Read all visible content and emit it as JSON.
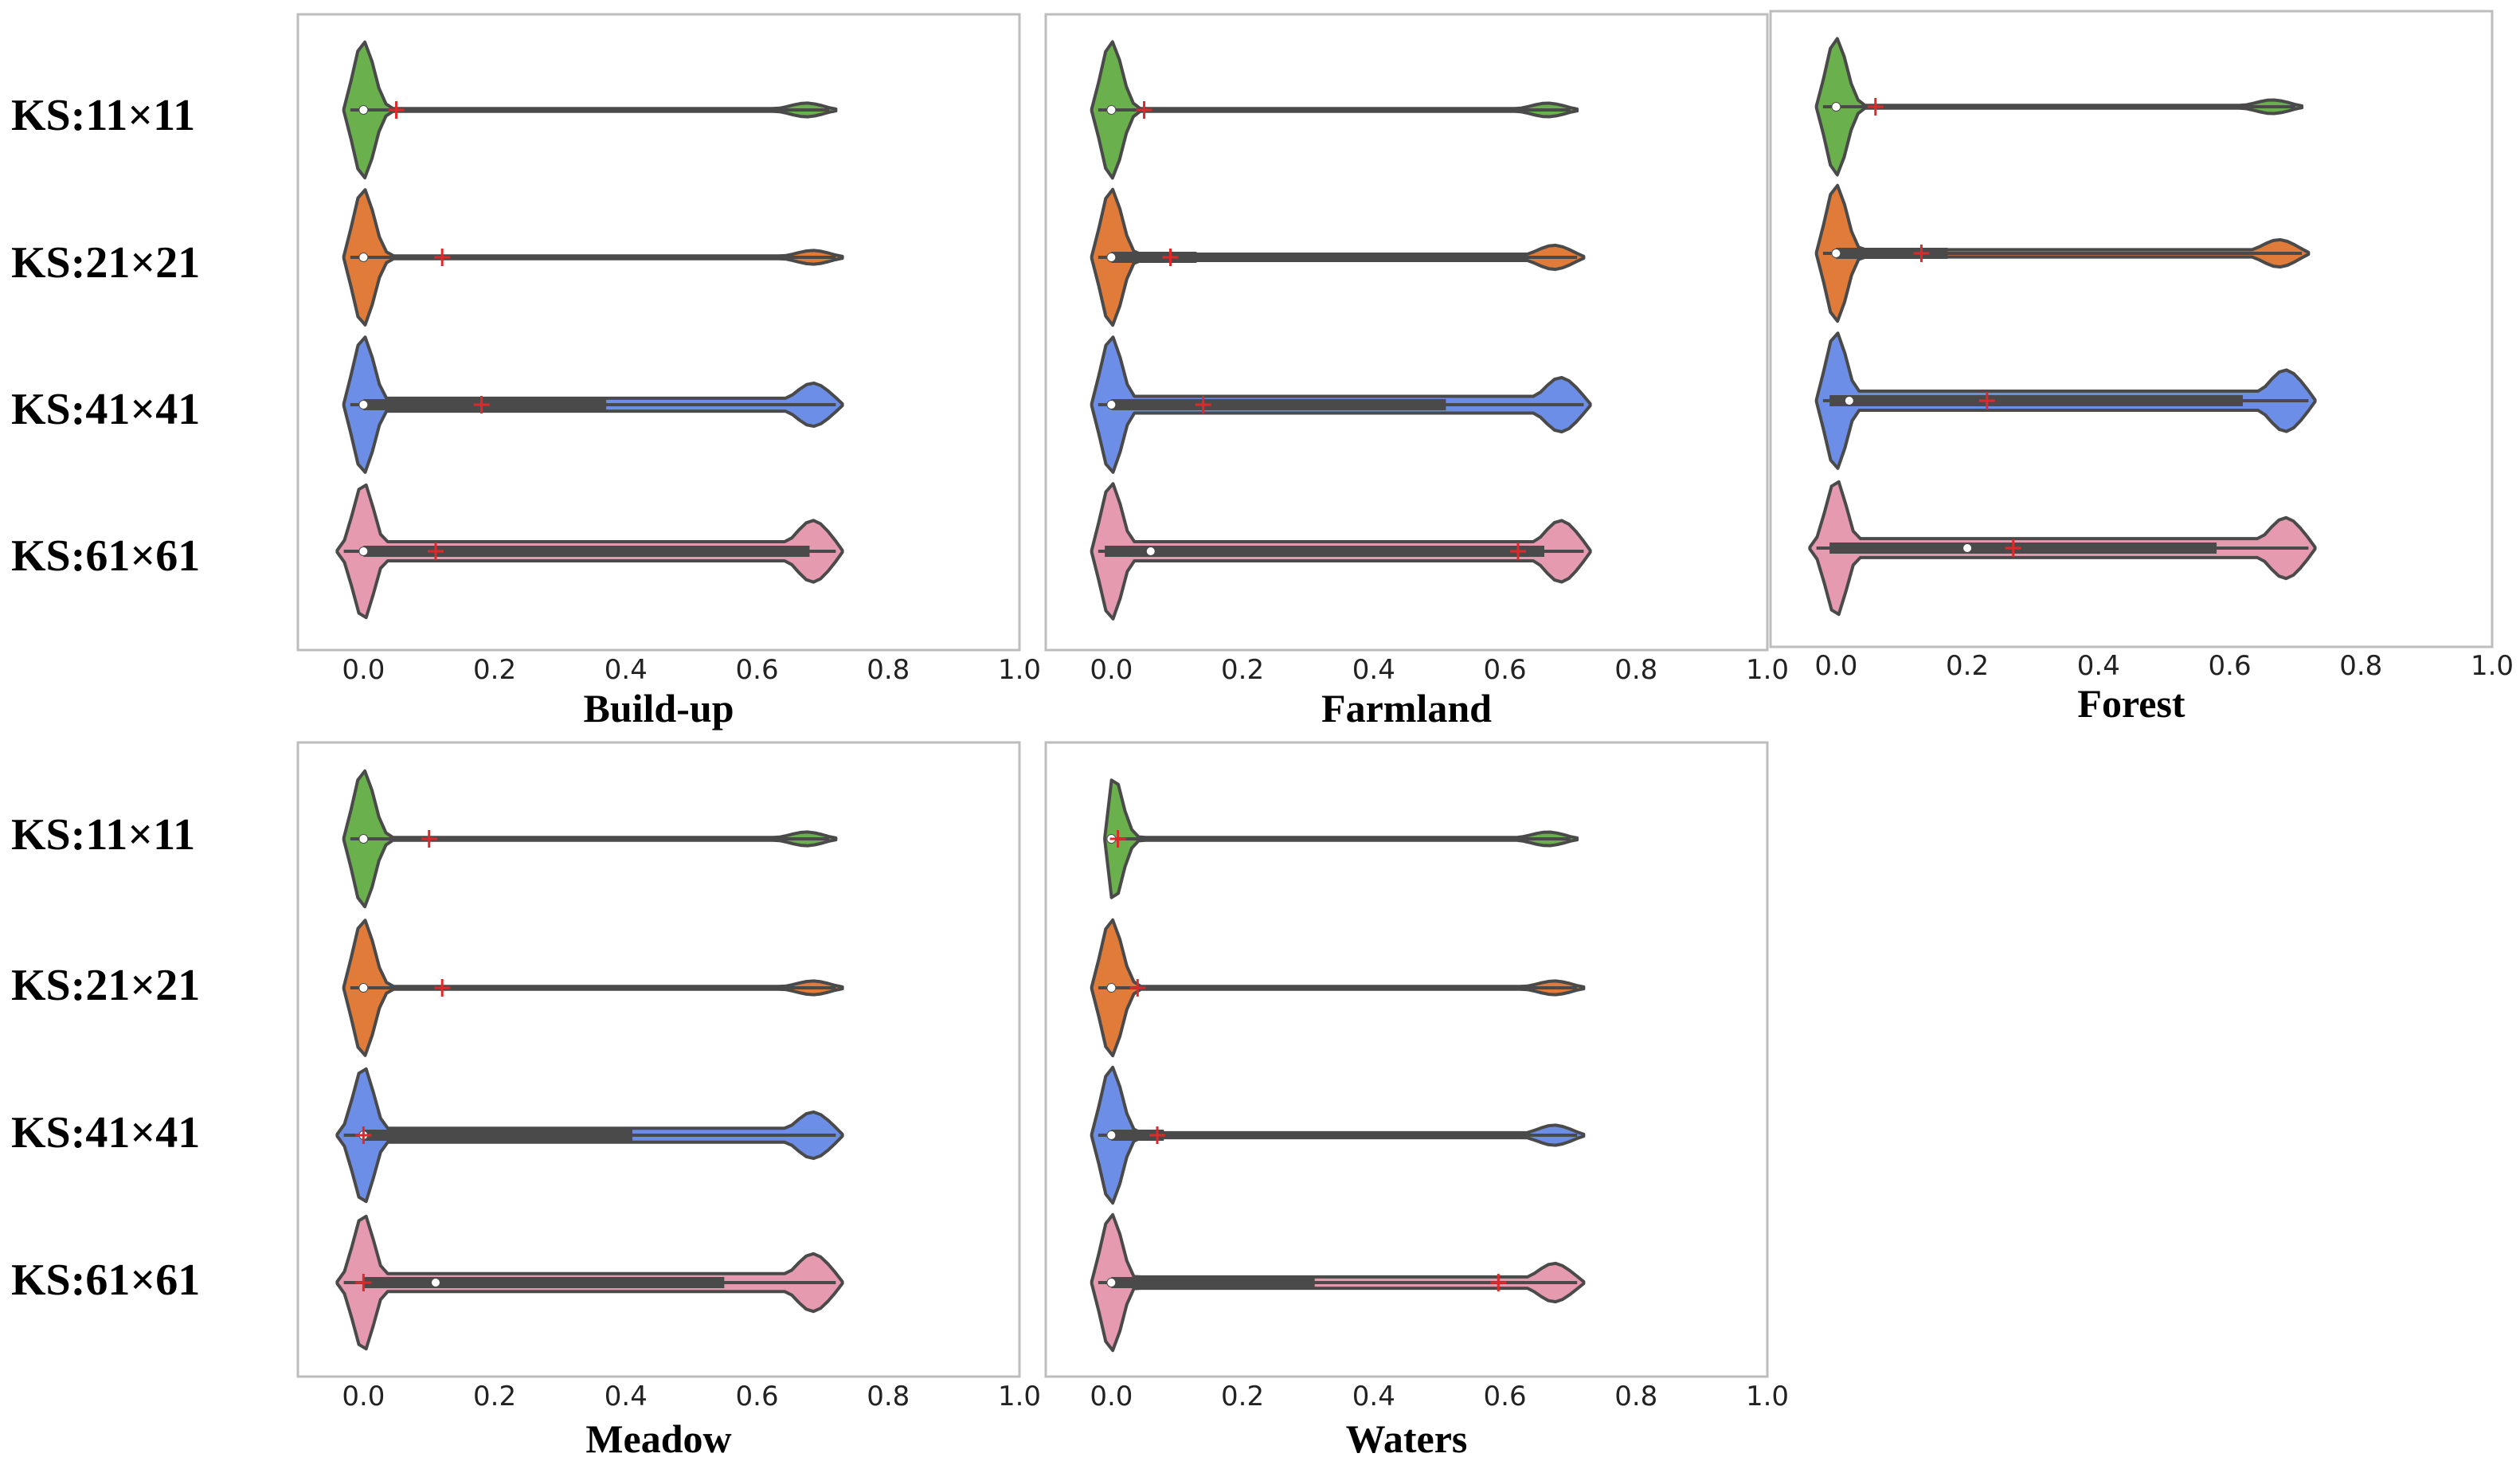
{
  "figure": {
    "row_labels": [
      "KS:11×11",
      "KS:21×21",
      "KS:41×41",
      "KS:61×61"
    ],
    "colors": {
      "KS:11×11": "#6ab04c",
      "KS:21×21": "#e07b39",
      "KS:41×41": "#6c8ee6",
      "KS:61×61": "#e59ab0",
      "outline": "#4a4a4a",
      "box": "#4a4a4a",
      "median": "#ffffff",
      "mean": "#e0282a"
    }
  },
  "chart_data": [
    {
      "type": "violin",
      "title": "Build-up",
      "xlim": [
        -0.1,
        1.0
      ],
      "ticks": [
        "0.0",
        "0.2",
        "0.4",
        "0.6",
        "0.8",
        "1.0"
      ],
      "tick_values": [
        0.0,
        0.2,
        0.4,
        0.6,
        0.8,
        1.0
      ],
      "series": [
        {
          "name": "KS:11×11",
          "min": -0.03,
          "max": 0.72,
          "q1": 0.0,
          "q3": 0.0,
          "median": 0.0,
          "mean": 0.05
        },
        {
          "name": "KS:21×21",
          "min": -0.03,
          "max": 0.73,
          "q1": 0.0,
          "q3": 0.0,
          "median": 0.0,
          "mean": 0.12
        },
        {
          "name": "KS:41×41",
          "min": -0.03,
          "max": 0.73,
          "q1": 0.0,
          "q3": 0.37,
          "median": 0.0,
          "mean": 0.18
        },
        {
          "name": "KS:61×61",
          "min": -0.04,
          "max": 0.73,
          "q1": 0.0,
          "q3": 0.68,
          "median": 0.0,
          "mean": 0.11
        }
      ]
    },
    {
      "type": "violin",
      "title": "Farmland",
      "xlim": [
        -0.1,
        1.0
      ],
      "ticks": [
        "0.0",
        "0.2",
        "0.4",
        "0.6",
        "0.8",
        "1.0"
      ],
      "tick_values": [
        0.0,
        0.2,
        0.4,
        0.6,
        0.8,
        1.0
      ],
      "series": [
        {
          "name": "KS:11×11",
          "min": -0.03,
          "max": 0.71,
          "q1": 0.0,
          "q3": 0.0,
          "median": 0.0,
          "mean": 0.05
        },
        {
          "name": "KS:21×21",
          "min": -0.03,
          "max": 0.72,
          "q1": 0.0,
          "q3": 0.13,
          "median": 0.0,
          "mean": 0.09
        },
        {
          "name": "KS:41×41",
          "min": -0.03,
          "max": 0.73,
          "q1": 0.0,
          "q3": 0.51,
          "median": 0.0,
          "mean": 0.14
        },
        {
          "name": "KS:61×61",
          "min": -0.03,
          "max": 0.73,
          "q1": -0.01,
          "q3": 0.66,
          "median": 0.06,
          "mean": 0.62
        }
      ]
    },
    {
      "type": "violin",
      "title": "Forest",
      "xlim": [
        -0.1,
        1.0
      ],
      "ticks": [
        "0.0",
        "0.2",
        "0.4",
        "0.6",
        "0.8",
        "1.0"
      ],
      "tick_values": [
        0.0,
        0.2,
        0.4,
        0.6,
        0.8,
        1.0
      ],
      "series": [
        {
          "name": "KS:11×11",
          "min": -0.03,
          "max": 0.71,
          "q1": 0.0,
          "q3": 0.0,
          "median": 0.0,
          "mean": 0.06
        },
        {
          "name": "KS:21×21",
          "min": -0.03,
          "max": 0.72,
          "q1": 0.0,
          "q3": 0.17,
          "median": 0.0,
          "mean": 0.13
        },
        {
          "name": "KS:41×41",
          "min": -0.03,
          "max": 0.73,
          "q1": -0.01,
          "q3": 0.62,
          "median": 0.02,
          "mean": 0.23
        },
        {
          "name": "KS:61×61",
          "min": -0.04,
          "max": 0.73,
          "q1": -0.01,
          "q3": 0.58,
          "median": 0.2,
          "mean": 0.27
        }
      ]
    },
    {
      "type": "violin",
      "title": "Meadow",
      "xlim": [
        -0.1,
        1.0
      ],
      "ticks": [
        "0.0",
        "0.2",
        "0.4",
        "0.6",
        "0.8",
        "1.0"
      ],
      "tick_values": [
        0.0,
        0.2,
        0.4,
        0.6,
        0.8,
        1.0
      ],
      "series": [
        {
          "name": "KS:11×11",
          "min": -0.03,
          "max": 0.72,
          "q1": 0.0,
          "q3": 0.0,
          "median": 0.0,
          "mean": 0.1
        },
        {
          "name": "KS:21×21",
          "min": -0.03,
          "max": 0.73,
          "q1": 0.0,
          "q3": 0.0,
          "median": 0.0,
          "mean": 0.12
        },
        {
          "name": "KS:41×41",
          "min": -0.04,
          "max": 0.73,
          "q1": 0.0,
          "q3": 0.41,
          "median": 0.0,
          "mean": 0.0
        },
        {
          "name": "KS:61×61",
          "min": -0.04,
          "max": 0.73,
          "q1": 0.0,
          "q3": 0.55,
          "median": 0.11,
          "mean": 0.0
        }
      ]
    },
    {
      "type": "violin",
      "title": "Waters",
      "xlim": [
        -0.1,
        1.0
      ],
      "ticks": [
        "0.0",
        "0.2",
        "0.4",
        "0.6",
        "0.8",
        "1.0"
      ],
      "tick_values": [
        0.0,
        0.2,
        0.4,
        0.6,
        0.8,
        1.0
      ],
      "series": [
        {
          "name": "KS:11×11",
          "min": -0.01,
          "max": 0.71,
          "q1": 0.0,
          "q3": 0.0,
          "median": 0.0,
          "mean": 0.01
        },
        {
          "name": "KS:21×21",
          "min": -0.03,
          "max": 0.72,
          "q1": 0.0,
          "q3": 0.0,
          "median": 0.0,
          "mean": 0.04
        },
        {
          "name": "KS:41×41",
          "min": -0.03,
          "max": 0.72,
          "q1": 0.0,
          "q3": 0.08,
          "median": 0.0,
          "mean": 0.07
        },
        {
          "name": "KS:61×61",
          "min": -0.03,
          "max": 0.72,
          "q1": 0.0,
          "q3": 0.31,
          "median": 0.0,
          "mean": 0.59
        }
      ]
    }
  ]
}
